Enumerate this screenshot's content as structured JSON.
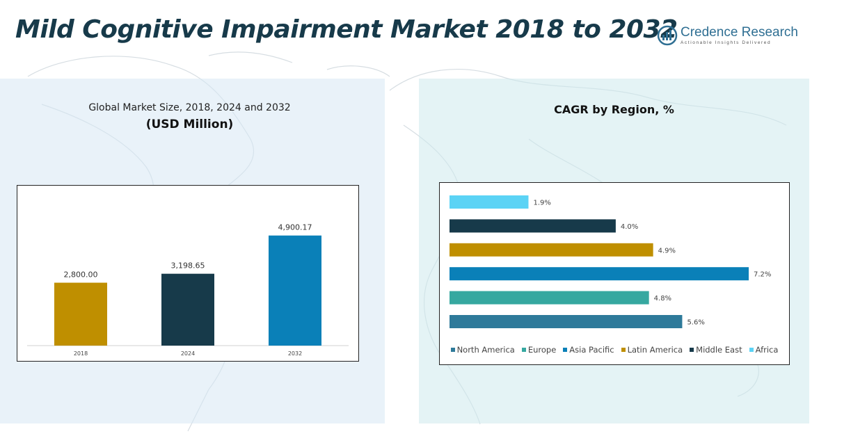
{
  "header": {
    "title": "Mild Cognitive Impairment Market 2018 to 2032",
    "brand_name": "Credence Research",
    "brand_tagline": "Actionable Insights Delivered"
  },
  "left_panel": {
    "subtitle": "Global Market Size, 2018, 2024 and 2032",
    "unit": "(USD Million)"
  },
  "right_panel": {
    "title": "CAGR by Region, %"
  },
  "colors": {
    "title": "#173a4a",
    "brand": "#2f6f93"
  },
  "chart_data": [
    {
      "type": "bar",
      "title": "Global Market Size, 2018, 2024 and 2032",
      "ylabel": "(USD Million)",
      "categories": [
        "2018",
        "2024",
        "2032"
      ],
      "values": [
        2800.0,
        3198.65,
        4900.17
      ],
      "value_labels": [
        "2,800.00",
        "3,198.65",
        "4,900.17"
      ],
      "colors": [
        "#bf8f00",
        "#173a4a",
        "#0a80b8"
      ],
      "ylim": [
        0,
        6500
      ],
      "grid": false
    },
    {
      "type": "bar",
      "orientation": "horizontal",
      "title": "CAGR by Region, %",
      "categories": [
        "Africa",
        "Middle East",
        "Latin America",
        "Asia Pacific",
        "Europe",
        "North America"
      ],
      "values": [
        1.9,
        4.0,
        4.9,
        7.2,
        4.8,
        5.6
      ],
      "value_labels": [
        "1.9%",
        "4.0%",
        "4.9%",
        "7.2%",
        "4.8%",
        "5.6%"
      ],
      "colors": [
        "#5bd3f5",
        "#173a4a",
        "#bf8f00",
        "#0a80b8",
        "#36a8a0",
        "#2e7a9a"
      ],
      "xlim": [
        0,
        7.5
      ],
      "legend": {
        "placement": "bottom",
        "entries": [
          "North America",
          "Europe",
          "Asia Pacific",
          "Latin America",
          "Middle East",
          "Africa"
        ],
        "colors": [
          "#2e7a9a",
          "#36a8a0",
          "#0a80b8",
          "#bf8f00",
          "#173a4a",
          "#5bd3f5"
        ]
      },
      "grid": false
    }
  ]
}
